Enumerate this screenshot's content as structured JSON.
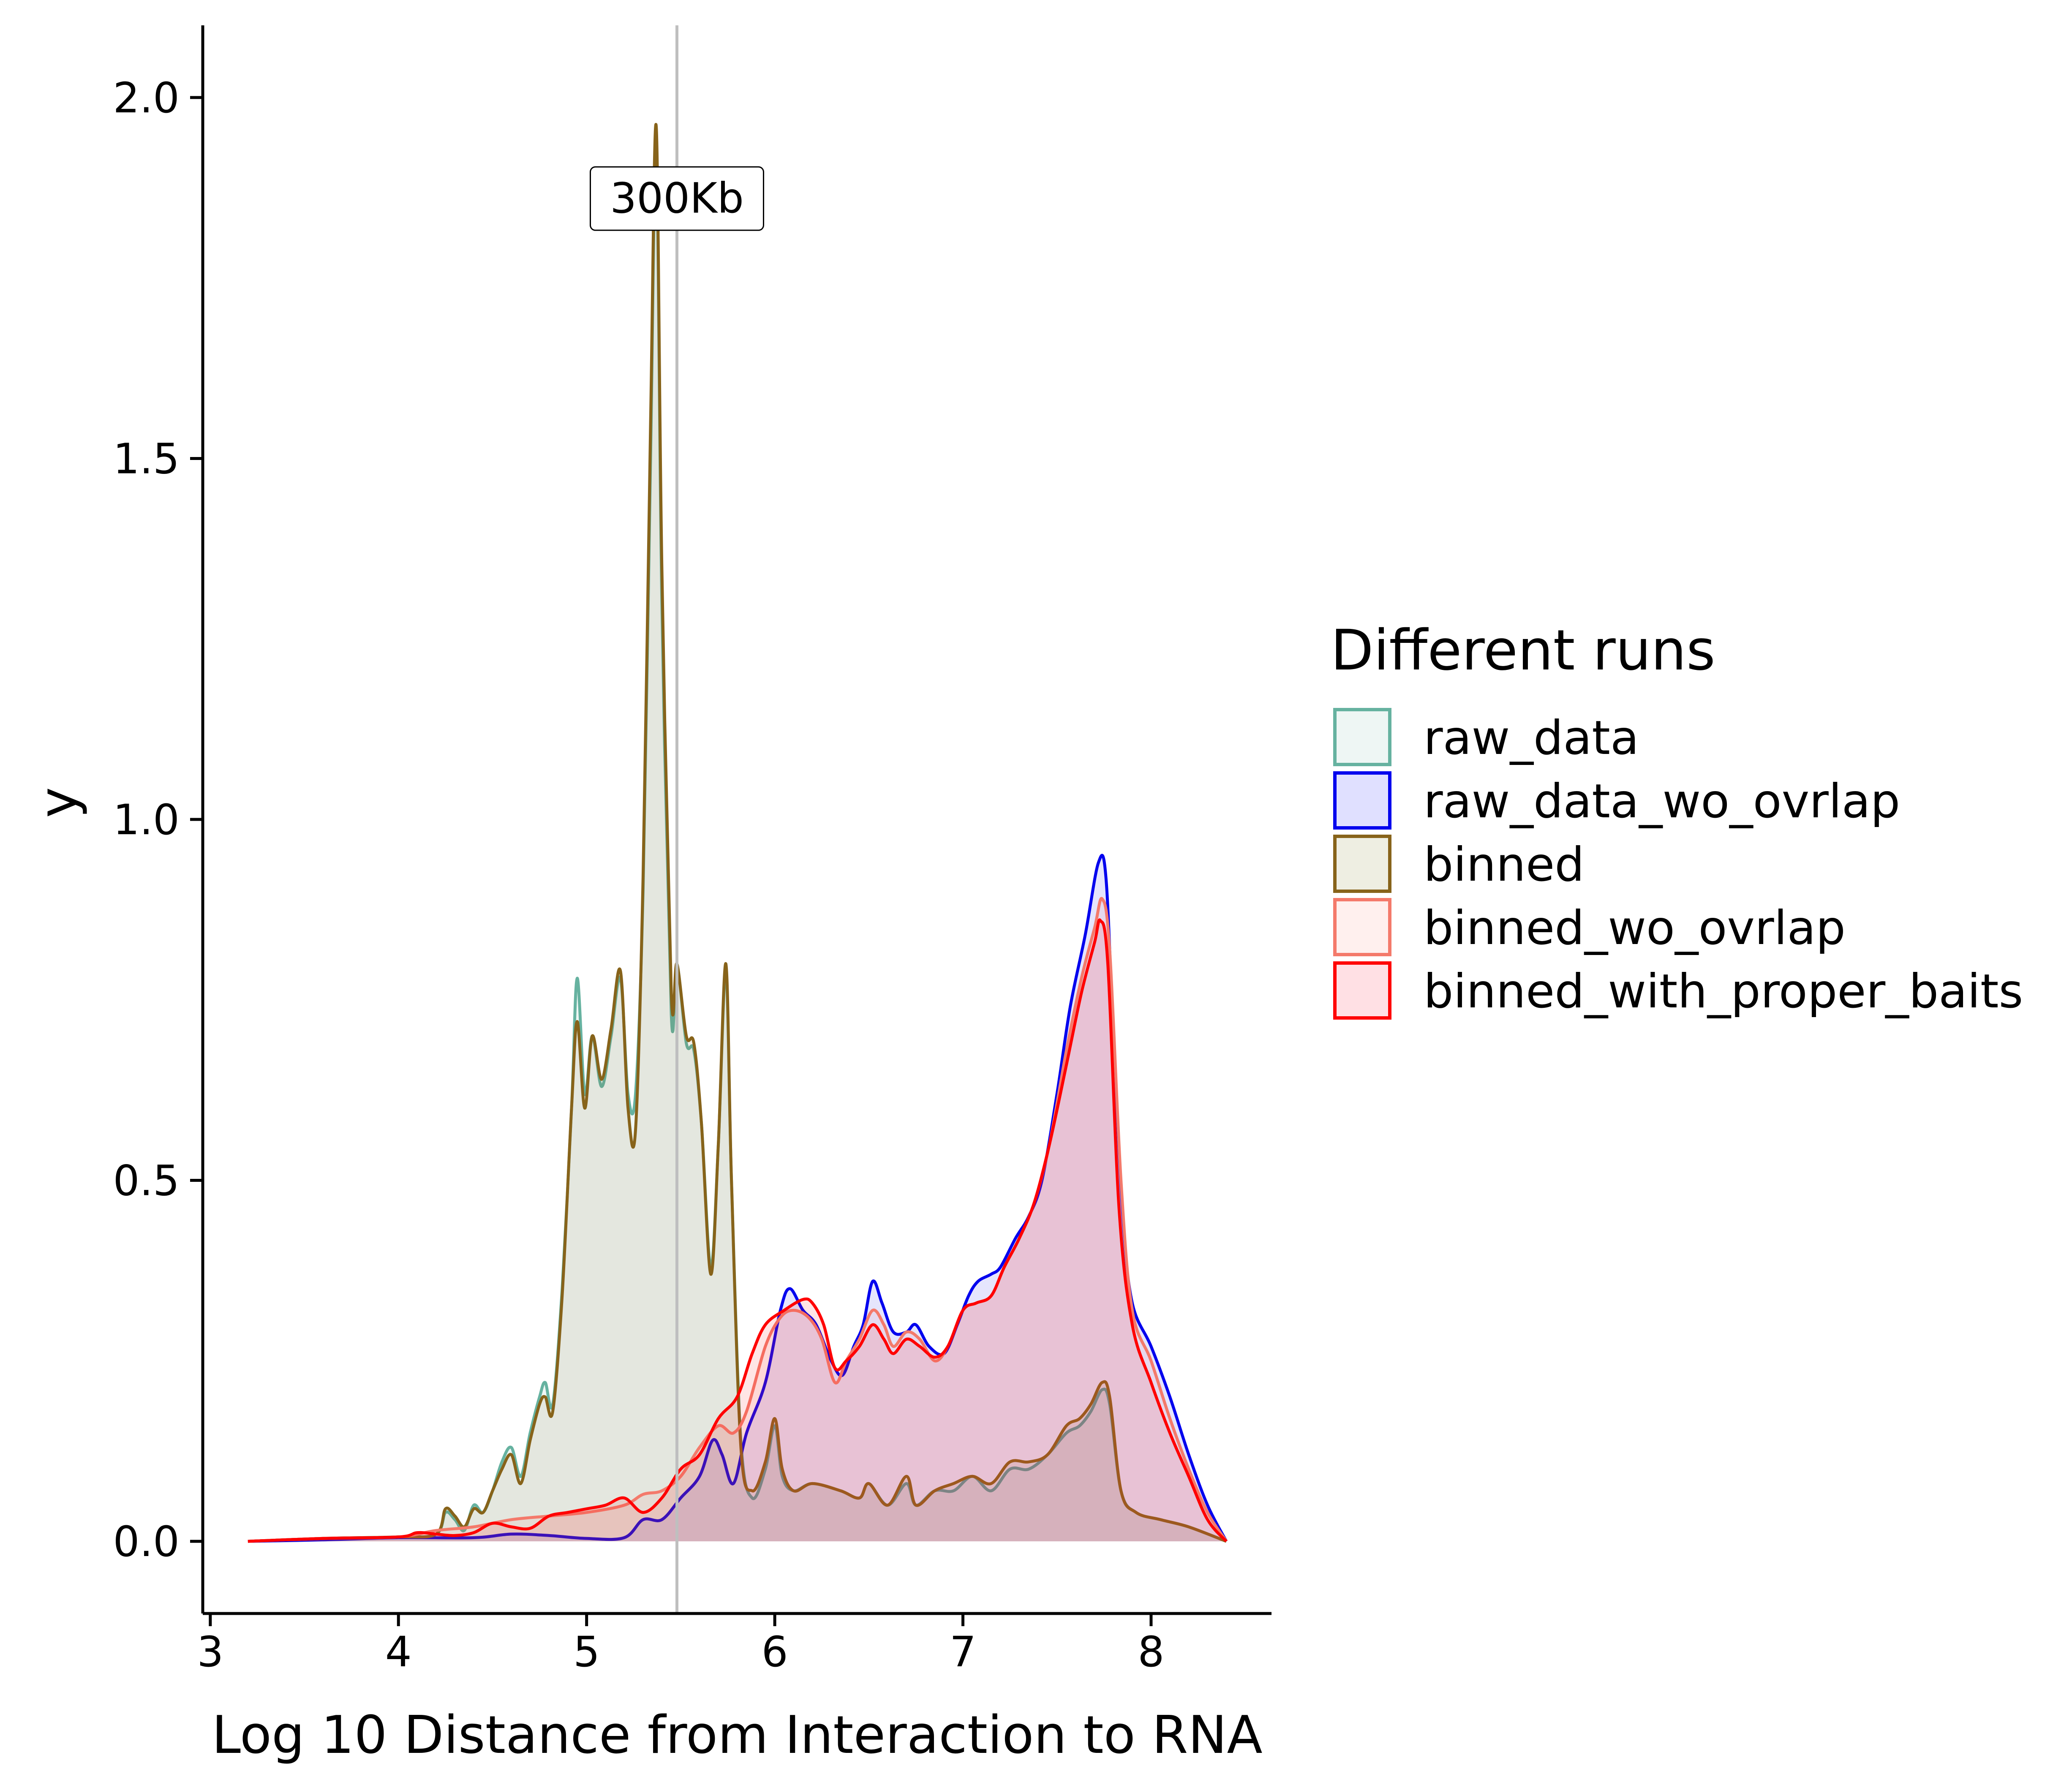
{
  "chart_data": {
    "type": "area",
    "xlabel": "Log 10 Distance from Interaction to RNA",
    "ylabel": "y",
    "xlim": [
      2.96,
      8.64
    ],
    "ylim": [
      -0.1,
      2.1
    ],
    "xticks": [
      3,
      4,
      5,
      6,
      7,
      8
    ],
    "yticks": [
      0.0,
      0.5,
      1.0,
      1.5,
      2.0
    ],
    "xtick_labels": [
      "3",
      "4",
      "5",
      "6",
      "7",
      "8"
    ],
    "ytick_labels": [
      "0.0",
      "0.5",
      "1.0",
      "1.5",
      "2.0"
    ],
    "grid": false,
    "legend": {
      "title": "Different runs",
      "position": "right"
    },
    "vline": {
      "x": 5.48,
      "color": "#bfbfbf"
    },
    "annotation": {
      "text": "300Kb",
      "x": 5.48,
      "y": 1.86
    },
    "series": [
      {
        "name": "raw_data",
        "color": "#66b2a0",
        "fill": "#eef6f4",
        "points": [
          [
            3.2,
            0
          ],
          [
            3.6,
            0.004
          ],
          [
            4.0,
            0.006
          ],
          [
            4.2,
            0.01
          ],
          [
            4.25,
            0.04
          ],
          [
            4.3,
            0.03
          ],
          [
            4.35,
            0.015
          ],
          [
            4.4,
            0.05
          ],
          [
            4.45,
            0.04
          ],
          [
            4.5,
            0.07
          ],
          [
            4.55,
            0.11
          ],
          [
            4.6,
            0.13
          ],
          [
            4.65,
            0.09
          ],
          [
            4.7,
            0.15
          ],
          [
            4.75,
            0.2
          ],
          [
            4.78,
            0.22
          ],
          [
            4.82,
            0.19
          ],
          [
            4.87,
            0.35
          ],
          [
            4.92,
            0.6
          ],
          [
            4.95,
            0.78
          ],
          [
            4.99,
            0.62
          ],
          [
            5.03,
            0.7
          ],
          [
            5.08,
            0.63
          ],
          [
            5.13,
            0.7
          ],
          [
            5.18,
            0.78
          ],
          [
            5.22,
            0.62
          ],
          [
            5.26,
            0.62
          ],
          [
            5.3,
            0.9
          ],
          [
            5.34,
            1.5
          ],
          [
            5.37,
            1.93
          ],
          [
            5.4,
            1.3
          ],
          [
            5.45,
            0.73
          ],
          [
            5.48,
            0.8
          ],
          [
            5.53,
            0.69
          ],
          [
            5.57,
            0.68
          ],
          [
            5.61,
            0.58
          ],
          [
            5.66,
            0.38
          ],
          [
            5.7,
            0.55
          ],
          [
            5.74,
            0.79
          ],
          [
            5.77,
            0.5
          ],
          [
            5.82,
            0.14
          ],
          [
            5.88,
            0.06
          ],
          [
            5.95,
            0.1
          ],
          [
            6.0,
            0.16
          ],
          [
            6.04,
            0.09
          ],
          [
            6.1,
            0.07
          ],
          [
            6.2,
            0.08
          ],
          [
            6.35,
            0.07
          ],
          [
            6.45,
            0.06
          ],
          [
            6.5,
            0.08
          ],
          [
            6.6,
            0.05
          ],
          [
            6.7,
            0.08
          ],
          [
            6.75,
            0.05
          ],
          [
            6.85,
            0.07
          ],
          [
            6.95,
            0.07
          ],
          [
            7.05,
            0.09
          ],
          [
            7.15,
            0.07
          ],
          [
            7.25,
            0.1
          ],
          [
            7.35,
            0.1
          ],
          [
            7.45,
            0.12
          ],
          [
            7.55,
            0.15
          ],
          [
            7.62,
            0.16
          ],
          [
            7.68,
            0.18
          ],
          [
            7.74,
            0.21
          ],
          [
            7.78,
            0.19
          ],
          [
            7.84,
            0.07
          ],
          [
            7.92,
            0.04
          ],
          [
            8.05,
            0.03
          ],
          [
            8.2,
            0.02
          ],
          [
            8.4,
            0.0
          ]
        ]
      },
      {
        "name": "raw_data_wo_ovrlap",
        "color": "#0000ee",
        "fill": "#e0e0ff",
        "points": [
          [
            3.2,
            0
          ],
          [
            3.6,
            0.002
          ],
          [
            4.0,
            0.005
          ],
          [
            4.4,
            0.005
          ],
          [
            4.6,
            0.01
          ],
          [
            4.8,
            0.008
          ],
          [
            5.0,
            0.004
          ],
          [
            5.2,
            0.005
          ],
          [
            5.3,
            0.03
          ],
          [
            5.4,
            0.03
          ],
          [
            5.5,
            0.06
          ],
          [
            5.6,
            0.09
          ],
          [
            5.67,
            0.14
          ],
          [
            5.72,
            0.12
          ],
          [
            5.78,
            0.08
          ],
          [
            5.85,
            0.15
          ],
          [
            5.95,
            0.22
          ],
          [
            6.03,
            0.32
          ],
          [
            6.08,
            0.35
          ],
          [
            6.15,
            0.32
          ],
          [
            6.22,
            0.3
          ],
          [
            6.3,
            0.25
          ],
          [
            6.36,
            0.23
          ],
          [
            6.42,
            0.27
          ],
          [
            6.47,
            0.3
          ],
          [
            6.52,
            0.36
          ],
          [
            6.57,
            0.33
          ],
          [
            6.63,
            0.29
          ],
          [
            6.7,
            0.29
          ],
          [
            6.75,
            0.3
          ],
          [
            6.82,
            0.27
          ],
          [
            6.9,
            0.26
          ],
          [
            6.97,
            0.3
          ],
          [
            7.03,
            0.34
          ],
          [
            7.08,
            0.36
          ],
          [
            7.15,
            0.37
          ],
          [
            7.2,
            0.38
          ],
          [
            7.28,
            0.42
          ],
          [
            7.35,
            0.45
          ],
          [
            7.42,
            0.5
          ],
          [
            7.5,
            0.62
          ],
          [
            7.57,
            0.74
          ],
          [
            7.65,
            0.84
          ],
          [
            7.72,
            0.94
          ],
          [
            7.76,
            0.92
          ],
          [
            7.8,
            0.7
          ],
          [
            7.85,
            0.45
          ],
          [
            7.9,
            0.33
          ],
          [
            8.0,
            0.27
          ],
          [
            8.1,
            0.2
          ],
          [
            8.2,
            0.12
          ],
          [
            8.3,
            0.05
          ],
          [
            8.4,
            0.0
          ]
        ]
      },
      {
        "name": "binned",
        "color": "#87631a",
        "fill": "#eeeee2",
        "points": [
          [
            3.2,
            0
          ],
          [
            3.6,
            0.004
          ],
          [
            4.0,
            0.006
          ],
          [
            4.2,
            0.01
          ],
          [
            4.25,
            0.045
          ],
          [
            4.3,
            0.035
          ],
          [
            4.35,
            0.02
          ],
          [
            4.4,
            0.045
          ],
          [
            4.45,
            0.04
          ],
          [
            4.5,
            0.07
          ],
          [
            4.55,
            0.1
          ],
          [
            4.6,
            0.12
          ],
          [
            4.65,
            0.08
          ],
          [
            4.7,
            0.14
          ],
          [
            4.75,
            0.19
          ],
          [
            4.78,
            0.2
          ],
          [
            4.82,
            0.18
          ],
          [
            4.87,
            0.34
          ],
          [
            4.92,
            0.6
          ],
          [
            4.95,
            0.72
          ],
          [
            4.99,
            0.6
          ],
          [
            5.03,
            0.7
          ],
          [
            5.08,
            0.64
          ],
          [
            5.13,
            0.71
          ],
          [
            5.18,
            0.79
          ],
          [
            5.22,
            0.6
          ],
          [
            5.26,
            0.57
          ],
          [
            5.3,
            0.92
          ],
          [
            5.34,
            1.55
          ],
          [
            5.37,
            1.96
          ],
          [
            5.4,
            1.35
          ],
          [
            5.45,
            0.76
          ],
          [
            5.48,
            0.8
          ],
          [
            5.53,
            0.7
          ],
          [
            5.57,
            0.69
          ],
          [
            5.61,
            0.58
          ],
          [
            5.66,
            0.37
          ],
          [
            5.7,
            0.55
          ],
          [
            5.74,
            0.8
          ],
          [
            5.77,
            0.5
          ],
          [
            5.82,
            0.13
          ],
          [
            5.88,
            0.07
          ],
          [
            5.95,
            0.11
          ],
          [
            6.0,
            0.17
          ],
          [
            6.04,
            0.1
          ],
          [
            6.1,
            0.07
          ],
          [
            6.2,
            0.08
          ],
          [
            6.35,
            0.07
          ],
          [
            6.45,
            0.06
          ],
          [
            6.5,
            0.08
          ],
          [
            6.6,
            0.05
          ],
          [
            6.7,
            0.09
          ],
          [
            6.75,
            0.05
          ],
          [
            6.85,
            0.07
          ],
          [
            6.95,
            0.08
          ],
          [
            7.05,
            0.09
          ],
          [
            7.15,
            0.08
          ],
          [
            7.25,
            0.11
          ],
          [
            7.35,
            0.11
          ],
          [
            7.45,
            0.12
          ],
          [
            7.55,
            0.16
          ],
          [
            7.62,
            0.17
          ],
          [
            7.68,
            0.19
          ],
          [
            7.74,
            0.22
          ],
          [
            7.78,
            0.2
          ],
          [
            7.84,
            0.07
          ],
          [
            7.92,
            0.04
          ],
          [
            8.05,
            0.03
          ],
          [
            8.2,
            0.02
          ],
          [
            8.4,
            0.0
          ]
        ]
      },
      {
        "name": "binned_wo_ovrlap",
        "color": "#f47a6b",
        "fill": "#fff0ee",
        "points": [
          [
            3.2,
            0
          ],
          [
            3.6,
            0.004
          ],
          [
            4.0,
            0.006
          ],
          [
            4.2,
            0.015
          ],
          [
            4.4,
            0.02
          ],
          [
            4.6,
            0.03
          ],
          [
            4.8,
            0.035
          ],
          [
            5.0,
            0.04
          ],
          [
            5.2,
            0.05
          ],
          [
            5.3,
            0.065
          ],
          [
            5.4,
            0.07
          ],
          [
            5.5,
            0.09
          ],
          [
            5.6,
            0.13
          ],
          [
            5.7,
            0.16
          ],
          [
            5.78,
            0.15
          ],
          [
            5.85,
            0.18
          ],
          [
            5.95,
            0.27
          ],
          [
            6.03,
            0.31
          ],
          [
            6.1,
            0.32
          ],
          [
            6.18,
            0.31
          ],
          [
            6.25,
            0.28
          ],
          [
            6.32,
            0.22
          ],
          [
            6.38,
            0.25
          ],
          [
            6.45,
            0.28
          ],
          [
            6.52,
            0.32
          ],
          [
            6.58,
            0.3
          ],
          [
            6.63,
            0.27
          ],
          [
            6.7,
            0.29
          ],
          [
            6.77,
            0.28
          ],
          [
            6.85,
            0.25
          ],
          [
            6.92,
            0.27
          ],
          [
            7.0,
            0.32
          ],
          [
            7.07,
            0.33
          ],
          [
            7.15,
            0.34
          ],
          [
            7.22,
            0.38
          ],
          [
            7.3,
            0.42
          ],
          [
            7.38,
            0.47
          ],
          [
            7.46,
            0.55
          ],
          [
            7.55,
            0.68
          ],
          [
            7.63,
            0.78
          ],
          [
            7.7,
            0.85
          ],
          [
            7.74,
            0.89
          ],
          [
            7.78,
            0.82
          ],
          [
            7.84,
            0.5
          ],
          [
            7.9,
            0.32
          ],
          [
            8.0,
            0.25
          ],
          [
            8.1,
            0.17
          ],
          [
            8.2,
            0.1
          ],
          [
            8.3,
            0.04
          ],
          [
            8.4,
            0.0
          ]
        ]
      },
      {
        "name": "binned_with_proper_baits",
        "color": "#ff0000",
        "fill": "#ffe0e4",
        "points": [
          [
            3.2,
            0
          ],
          [
            3.6,
            0.004
          ],
          [
            4.0,
            0.006
          ],
          [
            4.1,
            0.012
          ],
          [
            4.2,
            0.01
          ],
          [
            4.3,
            0.008
          ],
          [
            4.4,
            0.012
          ],
          [
            4.5,
            0.025
          ],
          [
            4.6,
            0.02
          ],
          [
            4.7,
            0.018
          ],
          [
            4.8,
            0.035
          ],
          [
            4.9,
            0.04
          ],
          [
            5.0,
            0.045
          ],
          [
            5.1,
            0.05
          ],
          [
            5.2,
            0.06
          ],
          [
            5.3,
            0.04
          ],
          [
            5.4,
            0.06
          ],
          [
            5.5,
            0.1
          ],
          [
            5.6,
            0.12
          ],
          [
            5.7,
            0.17
          ],
          [
            5.8,
            0.2
          ],
          [
            5.88,
            0.26
          ],
          [
            5.95,
            0.3
          ],
          [
            6.05,
            0.32
          ],
          [
            6.15,
            0.335
          ],
          [
            6.2,
            0.33
          ],
          [
            6.26,
            0.3
          ],
          [
            6.32,
            0.24
          ],
          [
            6.38,
            0.25
          ],
          [
            6.45,
            0.27
          ],
          [
            6.52,
            0.3
          ],
          [
            6.58,
            0.28
          ],
          [
            6.63,
            0.26
          ],
          [
            6.7,
            0.28
          ],
          [
            6.77,
            0.27
          ],
          [
            6.85,
            0.255
          ],
          [
            6.92,
            0.27
          ],
          [
            7.0,
            0.32
          ],
          [
            7.07,
            0.33
          ],
          [
            7.15,
            0.34
          ],
          [
            7.22,
            0.38
          ],
          [
            7.3,
            0.42
          ],
          [
            7.38,
            0.47
          ],
          [
            7.46,
            0.55
          ],
          [
            7.55,
            0.66
          ],
          [
            7.63,
            0.76
          ],
          [
            7.7,
            0.83
          ],
          [
            7.73,
            0.86
          ],
          [
            7.77,
            0.8
          ],
          [
            7.83,
            0.46
          ],
          [
            7.9,
            0.3
          ],
          [
            8.0,
            0.22
          ],
          [
            8.1,
            0.15
          ],
          [
            8.2,
            0.09
          ],
          [
            8.3,
            0.03
          ],
          [
            8.4,
            0.0
          ]
        ]
      }
    ]
  }
}
